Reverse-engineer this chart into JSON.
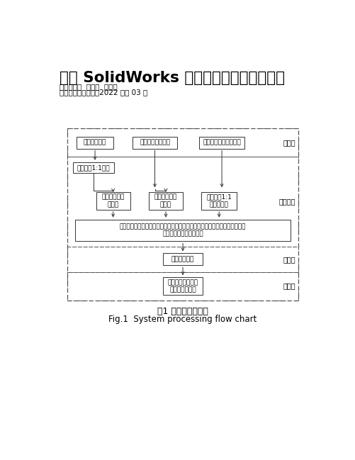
{
  "title": "基于 SolidWorks 的虚拟装配路径规划研究",
  "author_line": "作者：张鹏  仲梁维  张泽南",
  "source_line": "来源：《软件工程》2022 年第 03 期",
  "fig_caption_cn": "图1 系统处理流程图",
  "fig_caption_en": "Fig.1  System processing flow chart",
  "bg_color": "#ffffff",
  "layer_labels": [
    "输入层",
    "预处理层",
    "系统层",
    "输出层"
  ],
  "input_boxes": [
    "产品模族实物",
    "产品装配工艺文件",
    "六自由度机械手臂实物"
  ],
  "preprocess_box1": "实体割绘1:1建模",
  "preprocess_box2": "装配形成模族\n装配体",
  "preprocess_box3": "构建工作台、\n物料框",
  "preprocess_box4": "搭置实体1:1\n建模与装配",
  "preprocess_box5": "构建全局坐标与实际坐标耦合，放入工作台、物料框、产品模族装配体、机械\n手臂，构建整体装配系统",
  "system_box": "虚拟装配系统",
  "output_box": "输出产品模族装配\n路径和答索信息"
}
